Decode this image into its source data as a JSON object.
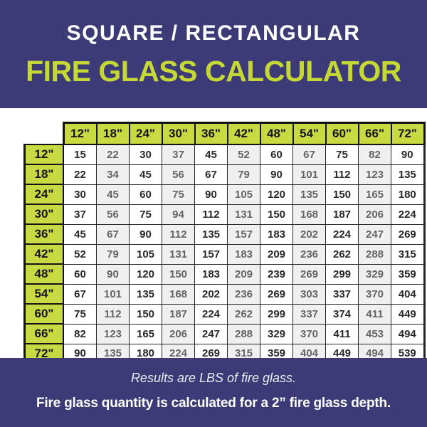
{
  "colors": {
    "navy": "#3c3b77",
    "header_green": "#c8da41",
    "title_green": "#c6d834",
    "cell_shade": "#f0f0f0",
    "cell_white": "#ffffff",
    "border_black": "#121212",
    "dark_text": "#272727",
    "gray_text": "#646464"
  },
  "banner": {
    "line1": "SQUARE / RECTANGULAR",
    "line2": "FIRE GLASS CALCULATOR"
  },
  "chart_data": {
    "type": "table",
    "title": "SQUARE / RECTANGULAR FIRE GLASS CALCULATOR",
    "column_headers": [
      "12\"",
      "18\"",
      "24\"",
      "30\"",
      "36\"",
      "42\"",
      "48\"",
      "54\"",
      "60\"",
      "66\"",
      "72\""
    ],
    "row_headers": [
      "12\"",
      "18\"",
      "24\"",
      "30\"",
      "36\"",
      "42\"",
      "48\"",
      "54\"",
      "60\"",
      "66\"",
      "72\""
    ],
    "values": [
      [
        15,
        22,
        30,
        37,
        45,
        52,
        60,
        67,
        75,
        82,
        90
      ],
      [
        22,
        34,
        45,
        56,
        67,
        79,
        90,
        101,
        112,
        123,
        135
      ],
      [
        30,
        45,
        60,
        75,
        90,
        105,
        120,
        135,
        150,
        165,
        180
      ],
      [
        37,
        56,
        75,
        94,
        112,
        131,
        150,
        168,
        187,
        206,
        224
      ],
      [
        45,
        67,
        90,
        112,
        135,
        157,
        183,
        202,
        224,
        247,
        269
      ],
      [
        52,
        79,
        105,
        131,
        157,
        183,
        209,
        236,
        262,
        288,
        315
      ],
      [
        60,
        90,
        120,
        150,
        183,
        209,
        239,
        269,
        299,
        329,
        359
      ],
      [
        67,
        101,
        135,
        168,
        202,
        236,
        269,
        303,
        337,
        370,
        404
      ],
      [
        75,
        112,
        150,
        187,
        224,
        262,
        299,
        337,
        374,
        411,
        449
      ],
      [
        82,
        123,
        165,
        206,
        247,
        288,
        329,
        370,
        411,
        453,
        494
      ],
      [
        90,
        135,
        180,
        224,
        269,
        315,
        359,
        404,
        449,
        494,
        539
      ]
    ],
    "units": "LBS of fire glass",
    "layout_hints": {
      "grid": true,
      "header_axes": "top and left",
      "shaded_columns": "even columns"
    }
  },
  "footer": {
    "note_italic": "Results are LBS of fire glass.",
    "note_bold": "Fire glass quantity is calculated for a 2” fire glass depth."
  }
}
